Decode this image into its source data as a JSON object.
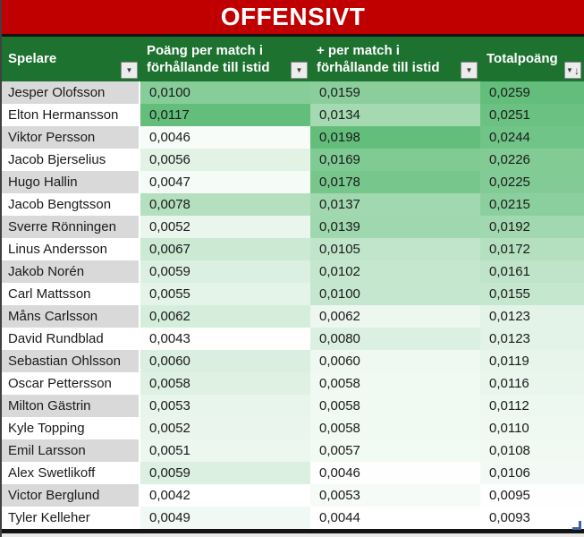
{
  "title": "OFFENSIVT",
  "colors": {
    "title_bg": "#C00000",
    "title_text": "#FFFFFF",
    "divider": "#141414",
    "header_bg": "#1E7230",
    "header_text": "#FFFFFF",
    "band_gray": "#D9D9D9",
    "band_white": "#FFFFFF",
    "scale_min": "#FFFFFF",
    "scale_max": "#63BE7B",
    "cell_text": "#1A1A1A",
    "handle_blue": "#3A66A7"
  },
  "icons": {
    "filter_dropdown": "▼",
    "sort_filter_triangle": "▼",
    "sort_descending_arrow": "↓"
  },
  "columns": [
    {
      "key": "spelare",
      "label": "Spelare",
      "button": "filter-dropdown"
    },
    {
      "key": "poang",
      "label": "Poäng per match i förhållande till istid",
      "button": "filter-dropdown"
    },
    {
      "key": "plus",
      "label": "+ per match i förhållande till istid",
      "button": "filter-dropdown"
    },
    {
      "key": "total",
      "label": "Totalpoäng",
      "button": "filter-sorted-descending"
    }
  ],
  "rows": [
    {
      "name": "Jesper Olofsson",
      "values": [
        "0,0100",
        "0,0159",
        "0,0259"
      ]
    },
    {
      "name": "Elton Hermansson",
      "values": [
        "0,0117",
        "0,0134",
        "0,0251"
      ]
    },
    {
      "name": "Viktor Persson",
      "values": [
        "0,0046",
        "0,0198",
        "0,0244"
      ]
    },
    {
      "name": "Jacob Bjerselius",
      "values": [
        "0,0056",
        "0,0169",
        "0,0226"
      ]
    },
    {
      "name": "Hugo Hallin",
      "values": [
        "0,0047",
        "0,0178",
        "0,0225"
      ]
    },
    {
      "name": "Jacob Bengtsson",
      "values": [
        "0,0078",
        "0,0137",
        "0,0215"
      ]
    },
    {
      "name": "Sverre Rönningen",
      "values": [
        "0,0052",
        "0,0139",
        "0,0192"
      ]
    },
    {
      "name": "Linus Andersson",
      "values": [
        "0,0067",
        "0,0105",
        "0,0172"
      ]
    },
    {
      "name": "Jakob Norén",
      "values": [
        "0,0059",
        "0,0102",
        "0,0161"
      ]
    },
    {
      "name": "Carl Mattsson",
      "values": [
        "0,0055",
        "0,0100",
        "0,0155"
      ]
    },
    {
      "name": "Måns Carlsson",
      "values": [
        "0,0062",
        "0,0062",
        "0,0123"
      ]
    },
    {
      "name": "David Rundblad",
      "values": [
        "0,0043",
        "0,0080",
        "0,0123"
      ]
    },
    {
      "name": "Sebastian Ohlsson",
      "values": [
        "0,0060",
        "0,0060",
        "0,0119"
      ]
    },
    {
      "name": "Oscar Pettersson",
      "values": [
        "0,0058",
        "0,0058",
        "0,0116"
      ]
    },
    {
      "name": "Milton Gästrin",
      "values": [
        "0,0053",
        "0,0058",
        "0,0112"
      ]
    },
    {
      "name": "Kyle Topping",
      "values": [
        "0,0052",
        "0,0058",
        "0,0110"
      ]
    },
    {
      "name": "Emil Larsson",
      "values": [
        "0,0051",
        "0,0057",
        "0,0108"
      ]
    },
    {
      "name": "Alex Swetlikoff",
      "values": [
        "0,0059",
        "0,0046",
        "0,0106"
      ]
    },
    {
      "name": "Victor Berglund",
      "values": [
        "0,0042",
        "0,0053",
        "0,0095"
      ]
    },
    {
      "name": "Tyler Kelleher",
      "values": [
        "0,0049",
        "0,0044",
        "0,0093"
      ]
    }
  ]
}
